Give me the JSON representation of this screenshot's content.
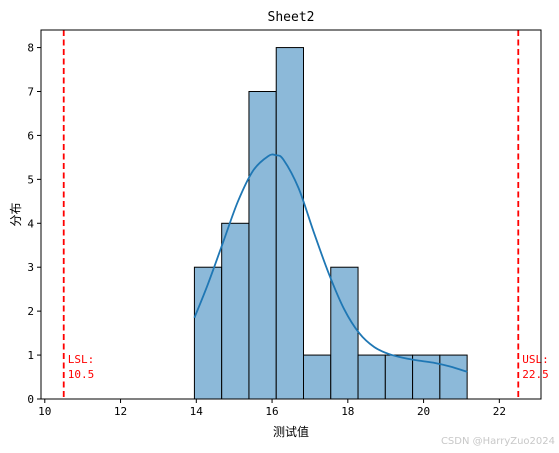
{
  "chart_data": {
    "type": "bar",
    "title": "Sheet2",
    "xlabel": "测试值",
    "ylabel": "分布",
    "xlim": [
      9.9,
      23.1
    ],
    "ylim": [
      0,
      8.4
    ],
    "xticks": [
      10,
      12,
      14,
      16,
      18,
      20,
      22
    ],
    "yticks": [
      0,
      1,
      2,
      3,
      4,
      5,
      6,
      7,
      8
    ],
    "bins": [
      {
        "x0": 13.95,
        "x1": 14.67,
        "count": 3
      },
      {
        "x0": 14.67,
        "x1": 15.39,
        "count": 4
      },
      {
        "x0": 15.39,
        "x1": 16.11,
        "count": 7
      },
      {
        "x0": 16.11,
        "x1": 16.83,
        "count": 8
      },
      {
        "x0": 16.83,
        "x1": 17.55,
        "count": 1
      },
      {
        "x0": 17.55,
        "x1": 18.27,
        "count": 3
      },
      {
        "x0": 18.27,
        "x1": 18.99,
        "count": 1
      },
      {
        "x0": 18.99,
        "x1": 19.71,
        "count": 1
      },
      {
        "x0": 19.71,
        "x1": 20.43,
        "count": 1
      },
      {
        "x0": 20.43,
        "x1": 21.15,
        "count": 1
      }
    ],
    "kde": {
      "x": [
        13.95,
        14.3,
        14.7,
        15.1,
        15.5,
        15.9,
        16.1,
        16.3,
        16.7,
        17.1,
        17.5,
        17.9,
        18.3,
        18.7,
        19.1,
        19.5,
        19.9,
        20.3,
        20.7,
        21.15
      ],
      "y": [
        1.85,
        2.6,
        3.55,
        4.5,
        5.2,
        5.53,
        5.55,
        5.45,
        4.8,
        3.8,
        2.85,
        2.05,
        1.5,
        1.18,
        1.02,
        0.93,
        0.87,
        0.82,
        0.74,
        0.62
      ]
    },
    "reference_lines": [
      {
        "x": 10.5,
        "label": [
          "LSL:",
          "10.5"
        ]
      },
      {
        "x": 22.5,
        "label": [
          "USL:",
          "22.5"
        ]
      }
    ],
    "colors": {
      "bar_fill": "#8cb9d9",
      "bar_edge": "#000000",
      "kde_line": "#1f77b4",
      "reference_line": "#ff0000"
    },
    "grid": false,
    "legend": "none"
  },
  "watermark": "CSDN @HarryZuo2024"
}
